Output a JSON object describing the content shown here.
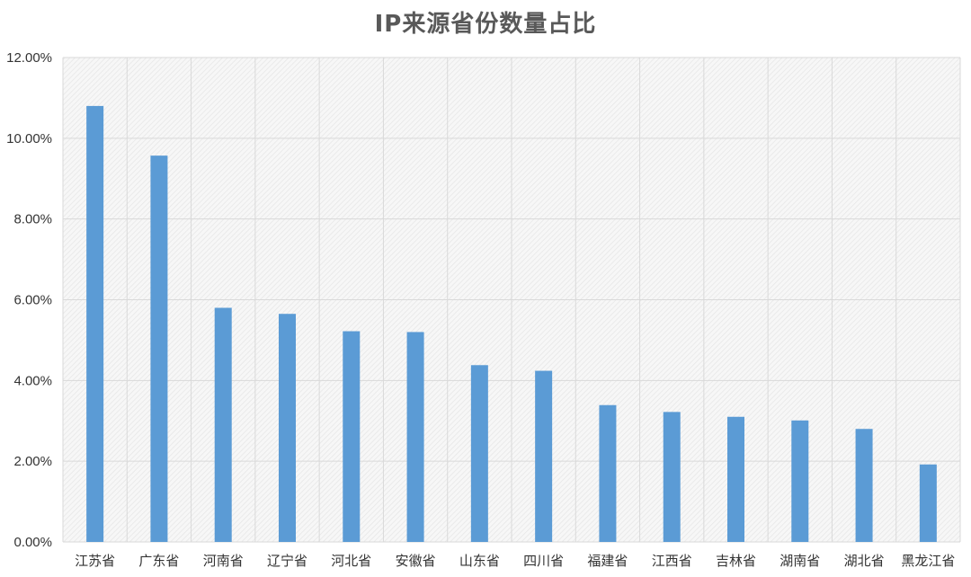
{
  "chart_data": {
    "type": "bar",
    "title": "IP来源省份数量占比",
    "xlabel": "",
    "ylabel": "",
    "categories": [
      "江苏省",
      "广东省",
      "河南省",
      "辽宁省",
      "河北省",
      "安徽省",
      "山东省",
      "四川省",
      "福建省",
      "江西省",
      "吉林省",
      "湖南省",
      "湖北省",
      "黑龙江省"
    ],
    "values": [
      0.108,
      0.0957,
      0.058,
      0.0565,
      0.0522,
      0.052,
      0.0438,
      0.0424,
      0.0339,
      0.0322,
      0.031,
      0.0301,
      0.028,
      0.0192
    ],
    "ylim": [
      0,
      0.12
    ],
    "y_ticks": [
      0,
      0.02,
      0.04,
      0.06,
      0.08,
      0.1,
      0.12
    ],
    "y_tick_labels": [
      "0.00%",
      "2.00%",
      "4.00%",
      "6.00%",
      "8.00%",
      "10.00%",
      "12.00%"
    ],
    "grid": true,
    "legend": "none",
    "colors": {
      "bar": "#5B9BD5",
      "grid": "#D9D9D9",
      "plot_background": "#F2F2F2",
      "title": "#595959",
      "tick_text": "#333333"
    }
  }
}
